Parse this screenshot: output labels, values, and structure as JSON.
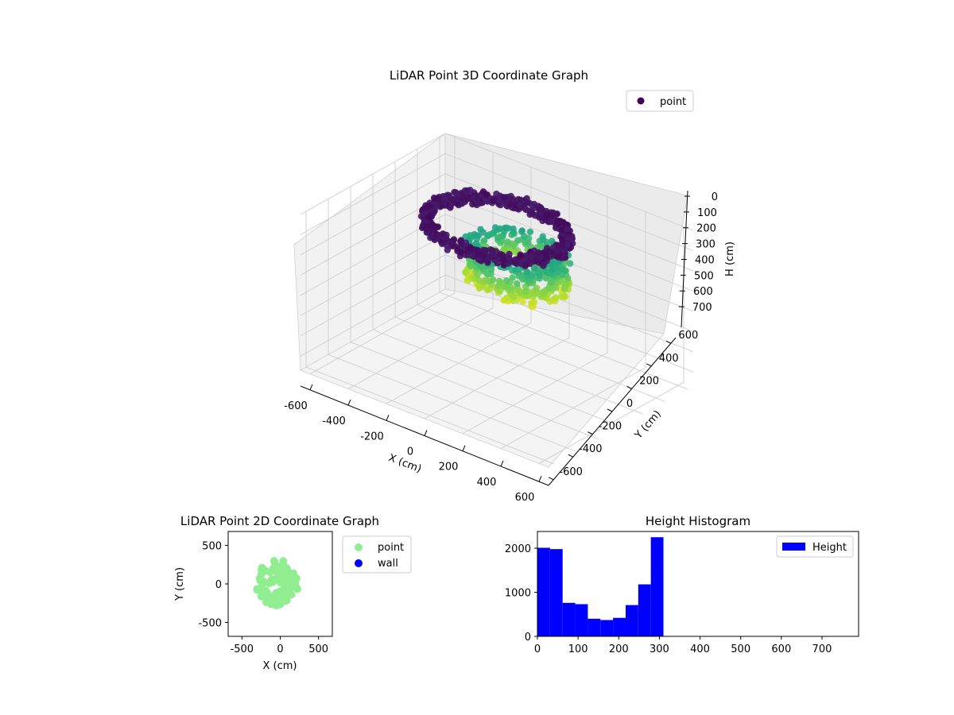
{
  "chart_data": [
    {
      "type": "scatter",
      "title": "LiDAR Point 3D Coordinate Graph",
      "xlabel": "X (cm)",
      "ylabel": "Y (cm)",
      "zlabel": "H (cm)",
      "xlim": [
        -650,
        650
      ],
      "ylim": [
        -650,
        650
      ],
      "zlim": [
        770,
        0
      ],
      "x_ticks": [
        -600,
        -400,
        -200,
        0,
        200,
        400,
        600
      ],
      "y_ticks": [
        -600,
        -400,
        -200,
        0,
        200,
        400,
        600
      ],
      "z_ticks": [
        0,
        100,
        200,
        300,
        400,
        500,
        600,
        700
      ],
      "legend": {
        "placement": "top-right",
        "entries": [
          "point"
        ]
      },
      "legend_color": "#440154",
      "colormap": "viridis",
      "grid": true,
      "series": [
        {
          "name": "point",
          "shape": "ring-and-column",
          "ring": {
            "radius": 330,
            "height_range": [
              0,
              60
            ]
          },
          "column": {
            "radius_range": [
              180,
              240
            ],
            "height_range": [
              120,
              310
            ]
          }
        }
      ]
    },
    {
      "type": "scatter",
      "title": "LiDAR Point 2D Coordinate Graph",
      "xlabel": "X (cm)",
      "ylabel": "Y (cm)",
      "xlim": [
        -680,
        680
      ],
      "ylim": [
        -680,
        680
      ],
      "x_ticks": [
        -500,
        0,
        500
      ],
      "y_ticks": [
        -500,
        0,
        500
      ],
      "legend": {
        "placement": "outside-right",
        "entries": [
          "point",
          "wall"
        ]
      },
      "series": [
        {
          "name": "point",
          "color": "#90ee90",
          "shape": "filled-blob",
          "extent": {
            "x": [
              -340,
              270
            ],
            "y": [
              -310,
              330
            ]
          }
        },
        {
          "name": "wall",
          "color": "#0000ff",
          "points": []
        }
      ]
    },
    {
      "type": "bar",
      "title": "Height Histogram",
      "xlabel": "",
      "ylabel": "",
      "xlim": [
        0,
        790
      ],
      "ylim": [
        0,
        2380
      ],
      "x_ticks": [
        0,
        100,
        200,
        300,
        400,
        500,
        600,
        700
      ],
      "y_ticks": [
        0,
        1000,
        2000
      ],
      "legend": {
        "placement": "top-right",
        "entries": [
          "Height"
        ]
      },
      "color": "#0000ff",
      "bin_width": 31,
      "bins": [
        {
          "start": 0,
          "count": 2010
        },
        {
          "start": 31,
          "count": 1980
        },
        {
          "start": 62,
          "count": 760
        },
        {
          "start": 93,
          "count": 730
        },
        {
          "start": 124,
          "count": 400
        },
        {
          "start": 155,
          "count": 370
        },
        {
          "start": 186,
          "count": 420
        },
        {
          "start": 217,
          "count": 710
        },
        {
          "start": 248,
          "count": 1180
        },
        {
          "start": 279,
          "count": 2250
        }
      ]
    }
  ]
}
